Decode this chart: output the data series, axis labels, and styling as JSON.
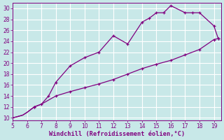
{
  "upper_x": [
    5,
    5.3,
    5.7,
    6,
    6.5,
    7,
    7.5,
    8,
    9,
    10,
    11,
    12,
    13,
    14,
    14.5,
    15,
    15.5,
    16,
    17,
    17.5,
    18,
    19,
    19.3
  ],
  "upper_y": [
    10,
    10.2,
    10.5,
    11,
    12,
    12.5,
    14,
    16.5,
    19.5,
    21,
    22,
    25,
    23.5,
    27.5,
    28.2,
    29.2,
    29.2,
    30.5,
    29.2,
    29.2,
    29.2,
    26.8,
    24.5
  ],
  "lower_x": [
    5,
    5.3,
    5.7,
    6,
    6.5,
    7,
    8,
    9,
    10,
    11,
    12,
    13,
    14,
    15,
    16,
    17,
    18,
    19,
    19.3
  ],
  "lower_y": [
    10,
    10.2,
    10.5,
    11,
    12,
    12.5,
    14,
    14.8,
    15.5,
    16.2,
    17,
    18,
    19,
    19.8,
    20.5,
    21.5,
    22.5,
    24.3,
    24.5
  ],
  "color": "#800080",
  "bg_color": "#c8e8e8",
  "grid_color": "#b0d8d8",
  "xlabel": "Windchill (Refroidissement éolien,°C)",
  "xlim": [
    5,
    19.5
  ],
  "ylim": [
    9.5,
    31
  ],
  "xticks": [
    5,
    6,
    7,
    8,
    9,
    10,
    11,
    12,
    13,
    14,
    15,
    16,
    17,
    18,
    19
  ],
  "yticks": [
    10,
    12,
    14,
    16,
    18,
    20,
    22,
    24,
    26,
    28,
    30
  ],
  "marker": "+"
}
